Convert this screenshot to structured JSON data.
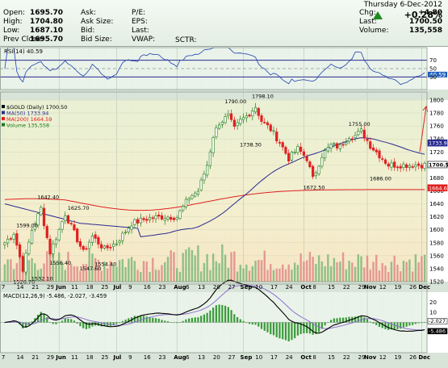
{
  "header": {
    "date": "Thursday  6-Dec-2012",
    "change_pct": "+0.28%",
    "quote_rows": [
      {
        "l1": "Open:",
        "v1": "1695.70",
        "l2": "Ask:",
        "v2": "",
        "l3": "P/E:",
        "v3": "",
        "l4": "Chg:",
        "v4": "+4.80"
      },
      {
        "l1": "High:",
        "v1": "1704.80",
        "l2": "Ask Size:",
        "v2": "",
        "l3": "EPS:",
        "v3": "",
        "l4": "Last:",
        "v4": "1700.50"
      },
      {
        "l1": "Low:",
        "v1": "1687.10",
        "l2": "Bid:",
        "v2": "",
        "l3": "Last:",
        "v3": "",
        "l4": "Volume:",
        "v4": "135,558"
      },
      {
        "l1": "Prev Close:",
        "v1": "1695.70",
        "l2": "Bid Size:",
        "v2": "",
        "l3": "VWAP:",
        "v3": "",
        "l4": "",
        "v4": ""
      }
    ],
    "sctr_label": "SCTR:"
  },
  "colors": {
    "up": "#1d7b1d",
    "down": "#e02020",
    "ma50": "#2a2a90",
    "ma200": "#e02020",
    "rsi": "#2040b0",
    "macd": "#000000",
    "signal": "#9070d0",
    "hist": "#3a9a3a",
    "volume": "#66aa66"
  },
  "chart_data": [
    {
      "type": "line",
      "title": "RSI(14) 40.59",
      "ylim": [
        0,
        100
      ],
      "y_ticks": [
        "70",
        "50",
        "40.59",
        "30"
      ],
      "reference_lines": [
        70,
        50,
        30
      ],
      "last_value": 40.59
    },
    {
      "type": "candlestick",
      "legend": [
        {
          "label": "$GOLD (Daily) 1700.50",
          "color": "#000000"
        },
        {
          "label": "MA(50) 1733.94",
          "color": "#2a2a90"
        },
        {
          "label": "MA(200) 1664.59",
          "color": "#e02020"
        },
        {
          "label": "Volume 135,558",
          "color": "#1d7b1d"
        }
      ],
      "ylim": [
        1520,
        1800
      ],
      "y_ticks": [
        "1800",
        "1780",
        "1760",
        "1740",
        "1720",
        "1700",
        "1680",
        "1660",
        "1640",
        "1620",
        "1600",
        "1580",
        "1560",
        "1540",
        "1520"
      ],
      "price_tags": [
        "1733.9",
        "1700.5",
        "1664.6"
      ],
      "anchors": [
        {
          "d": 0,
          "p": 1580
        },
        {
          "d": 3,
          "p": 1595
        },
        {
          "d": 6,
          "p": 1540
        },
        {
          "d": 9,
          "p": 1600
        },
        {
          "d": 12,
          "p": 1633
        },
        {
          "d": 15,
          "p": 1565
        },
        {
          "d": 18,
          "p": 1600
        },
        {
          "d": 20,
          "p": 1625
        },
        {
          "d": 23,
          "p": 1595
        },
        {
          "d": 26,
          "p": 1565
        },
        {
          "d": 29,
          "p": 1590
        },
        {
          "d": 33,
          "p": 1570
        },
        {
          "d": 37,
          "p": 1580
        },
        {
          "d": 42,
          "p": 1610
        },
        {
          "d": 47,
          "p": 1617
        },
        {
          "d": 52,
          "p": 1620
        },
        {
          "d": 57,
          "p": 1620
        },
        {
          "d": 61,
          "p": 1650
        },
        {
          "d": 64,
          "p": 1660
        },
        {
          "d": 67,
          "p": 1700
        },
        {
          "d": 69,
          "p": 1745
        },
        {
          "d": 71,
          "p": 1765
        },
        {
          "d": 74,
          "p": 1775
        },
        {
          "d": 76,
          "p": 1755
        },
        {
          "d": 78,
          "p": 1768
        },
        {
          "d": 80,
          "p": 1775
        },
        {
          "d": 83,
          "p": 1790
        },
        {
          "d": 85,
          "p": 1768
        },
        {
          "d": 88,
          "p": 1755
        },
        {
          "d": 91,
          "p": 1735
        },
        {
          "d": 94,
          "p": 1710
        },
        {
          "d": 97,
          "p": 1725
        },
        {
          "d": 100,
          "p": 1710
        },
        {
          "d": 102,
          "p": 1678
        },
        {
          "d": 105,
          "p": 1715
        },
        {
          "d": 108,
          "p": 1730
        },
        {
          "d": 111,
          "p": 1728
        },
        {
          "d": 114,
          "p": 1745
        },
        {
          "d": 116,
          "p": 1745
        },
        {
          "d": 118,
          "p": 1752
        },
        {
          "d": 121,
          "p": 1730
        },
        {
          "d": 124,
          "p": 1715
        },
        {
          "d": 127,
          "p": 1700
        }
      ],
      "annotations": [
        {
          "text": "1526.70",
          "d": 6,
          "p": 1526.7,
          "pos": "below"
        },
        {
          "text": "1599.00",
          "d": 7,
          "p": 1599.0,
          "pos": "above"
        },
        {
          "text": "1532.10",
          "d": 12,
          "p": 1532.1,
          "pos": "below"
        },
        {
          "text": "1556.40",
          "d": 18,
          "p": 1556.4,
          "pos": "below"
        },
        {
          "text": "1642.40",
          "d": 14,
          "p": 1642.4,
          "pos": "above"
        },
        {
          "text": "1625.70",
          "d": 24,
          "p": 1625.7,
          "pos": "above"
        },
        {
          "text": "1547.60",
          "d": 28,
          "p": 1547.6,
          "pos": "below"
        },
        {
          "text": "1554.40",
          "d": 33,
          "p": 1554.4,
          "pos": "below"
        },
        {
          "text": "1790.00",
          "d": 76,
          "p": 1790.0,
          "pos": "above"
        },
        {
          "text": "1738.30",
          "d": 81,
          "p": 1738.3,
          "pos": "below"
        },
        {
          "text": "1798.10",
          "d": 85,
          "p": 1798.1,
          "pos": "above"
        },
        {
          "text": "1672.50",
          "d": 102,
          "p": 1672.5,
          "pos": "below"
        },
        {
          "text": "1755.00",
          "d": 117,
          "p": 1755.0,
          "pos": "above"
        },
        {
          "text": "1686.00",
          "d": 124,
          "p": 1686.0,
          "pos": "below"
        }
      ]
    },
    {
      "type": "line",
      "title": "MACD(12,26,9) -5.486, -2.027, -3.459",
      "title_parts": [
        "MACD(12,26,9)",
        "-5.486",
        "-2.027",
        "-3.459"
      ],
      "y_ticks": [
        "20",
        "10",
        "0",
        "-2.027",
        "-5.486"
      ],
      "ylim": [
        -30,
        30
      ]
    }
  ],
  "x_axis": {
    "labels": [
      {
        "text": "7",
        "d": 0
      },
      {
        "text": "14",
        "d": 5
      },
      {
        "text": "21",
        "d": 10
      },
      {
        "text": "29",
        "d": 15
      },
      {
        "text": "Jun",
        "d": 18,
        "bold": true
      },
      {
        "text": "11",
        "d": 23
      },
      {
        "text": "18",
        "d": 28
      },
      {
        "text": "25",
        "d": 33
      },
      {
        "text": "Jul",
        "d": 37,
        "bold": true
      },
      {
        "text": "9",
        "d": 42
      },
      {
        "text": "16",
        "d": 47
      },
      {
        "text": "23",
        "d": 52
      },
      {
        "text": "Aug",
        "d": 57,
        "bold": true
      },
      {
        "text": "6",
        "d": 61
      },
      {
        "text": "13",
        "d": 65
      },
      {
        "text": "20",
        "d": 70
      },
      {
        "text": "27",
        "d": 75
      },
      {
        "text": "Sep",
        "d": 79,
        "bold": true
      },
      {
        "text": "10",
        "d": 84
      },
      {
        "text": "17",
        "d": 89
      },
      {
        "text": "24",
        "d": 94
      },
      {
        "text": "Oct",
        "d": 99,
        "bold": true
      },
      {
        "text": "8",
        "d": 103
      },
      {
        "text": "15",
        "d": 108
      },
      {
        "text": "22",
        "d": 113
      },
      {
        "text": "29",
        "d": 118
      },
      {
        "text": "Nov",
        "d": 120,
        "bold": true
      },
      {
        "text": "12",
        "d": 125
      },
      {
        "text": "19",
        "d": 130
      },
      {
        "text": "26",
        "d": 135
      },
      {
        "text": "Dec",
        "d": 138,
        "bold": true
      }
    ]
  }
}
